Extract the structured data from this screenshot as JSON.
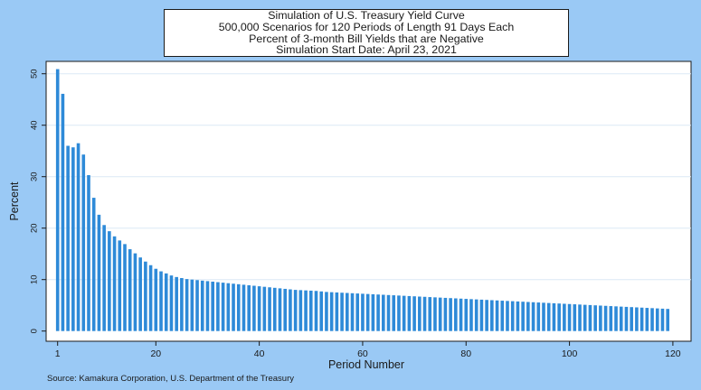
{
  "title_lines": [
    "Simulation of U.S. Treasury Yield Curve",
    "500,000 Scenarios for 120 Periods of Length 91 Days Each",
    "Percent of 3-month Bill Yields that are Negative",
    "Simulation Start Date: April 23, 2021"
  ],
  "source": "Source: Kamakura Corporation, U.S. Department of the Treasury",
  "colors": {
    "background": "#9ac9f5",
    "plot": "#ffffff",
    "bar": "#2e8ad8",
    "grid": "#dbe9f6"
  },
  "chart_data": {
    "type": "bar",
    "xlabel": "Period Number",
    "ylabel": "Percent",
    "xlim": [
      0,
      120
    ],
    "ylim": [
      0,
      52
    ],
    "xticks": [
      1,
      20,
      40,
      60,
      80,
      100,
      120
    ],
    "yticks": [
      0,
      10,
      20,
      30,
      40,
      50
    ],
    "grid": true,
    "legend": "none",
    "x": [
      1,
      2,
      3,
      4,
      5,
      6,
      7,
      8,
      9,
      10,
      11,
      12,
      13,
      14,
      15,
      16,
      17,
      18,
      19,
      20,
      21,
      22,
      23,
      24,
      25,
      26,
      27,
      28,
      29,
      30,
      31,
      32,
      33,
      34,
      35,
      36,
      37,
      38,
      39,
      40,
      41,
      42,
      43,
      44,
      45,
      46,
      47,
      48,
      49,
      50,
      51,
      52,
      53,
      54,
      55,
      56,
      57,
      58,
      59,
      60,
      61,
      62,
      63,
      64,
      65,
      66,
      67,
      68,
      69,
      70,
      71,
      72,
      73,
      74,
      75,
      76,
      77,
      78,
      79,
      80,
      81,
      82,
      83,
      84,
      85,
      86,
      87,
      88,
      89,
      90,
      91,
      92,
      93,
      94,
      95,
      96,
      97,
      98,
      99,
      100,
      101,
      102,
      103,
      104,
      105,
      106,
      107,
      108,
      109,
      110,
      111,
      112,
      113,
      114,
      115,
      116,
      117,
      118,
      119
    ],
    "values": [
      50.9,
      46.1,
      36.0,
      35.7,
      36.5,
      34.3,
      30.3,
      25.9,
      22.6,
      20.6,
      19.4,
      18.4,
      17.6,
      16.9,
      15.9,
      15.1,
      14.3,
      13.5,
      12.8,
      12.1,
      11.6,
      11.2,
      10.8,
      10.5,
      10.3,
      10.1,
      10.0,
      9.9,
      9.8,
      9.7,
      9.6,
      9.5,
      9.4,
      9.3,
      9.2,
      9.1,
      9.0,
      8.9,
      8.8,
      8.7,
      8.6,
      8.5,
      8.4,
      8.3,
      8.2,
      8.1,
      8.0,
      7.95,
      7.9,
      7.85,
      7.8,
      7.7,
      7.6,
      7.55,
      7.5,
      7.45,
      7.4,
      7.35,
      7.3,
      7.25,
      7.2,
      7.15,
      7.1,
      7.05,
      7.0,
      6.95,
      6.9,
      6.85,
      6.8,
      6.75,
      6.7,
      6.65,
      6.6,
      6.55,
      6.5,
      6.45,
      6.4,
      6.35,
      6.3,
      6.25,
      6.2,
      6.15,
      6.1,
      6.05,
      6.0,
      5.95,
      5.9,
      5.85,
      5.8,
      5.75,
      5.7,
      5.65,
      5.6,
      5.55,
      5.5,
      5.45,
      5.4,
      5.35,
      5.3,
      5.25,
      5.2,
      5.15,
      5.1,
      5.05,
      5.0,
      4.95,
      4.9,
      4.85,
      4.8,
      4.75,
      4.7,
      4.65,
      4.6,
      4.55,
      4.5,
      4.45,
      4.4,
      4.35,
      4.3
    ]
  }
}
